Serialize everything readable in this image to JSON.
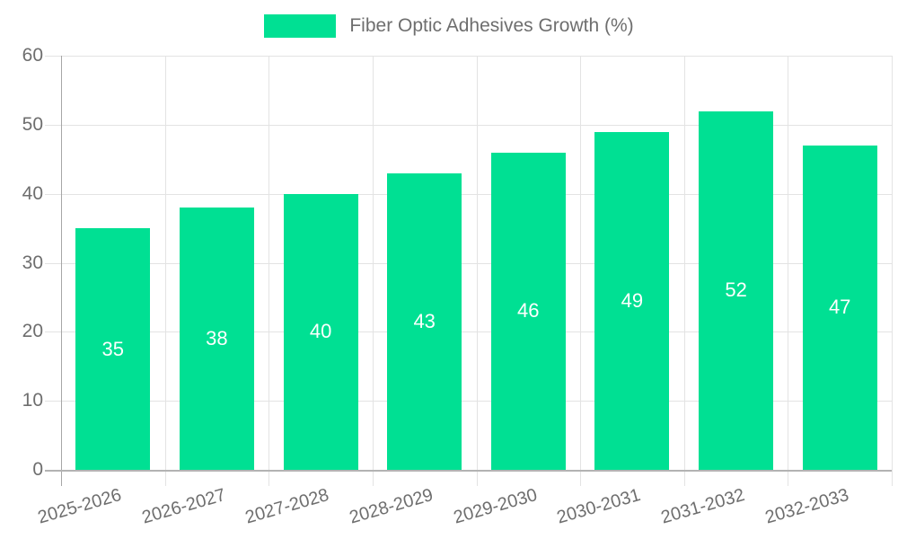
{
  "chart_data": {
    "type": "bar",
    "title": "Fiber Optic Adhesives Growth (%)",
    "categories": [
      "2025-2026",
      "2026-2027",
      "2027-2028",
      "2028-2029",
      "2029-2030",
      "2030-2031",
      "2031-2032",
      "2032-2033"
    ],
    "values": [
      35,
      38,
      40,
      43,
      46,
      49,
      52,
      47
    ],
    "xlabel": "",
    "ylabel": "",
    "ylim": [
      0,
      60
    ],
    "y_ticks": [
      0,
      10,
      20,
      30,
      40,
      50,
      60
    ],
    "grid": true,
    "legend_position": "top",
    "bar_labels_inside": true
  },
  "colors": {
    "bar": "#00e093",
    "bar_label": "#ffffff",
    "axis_text": "#6e6e6e",
    "grid_line": "#e3e3e3",
    "y_axis_line": "#a6a6a6",
    "x_axis_line": "#b3b3b3",
    "background": "#ffffff"
  }
}
